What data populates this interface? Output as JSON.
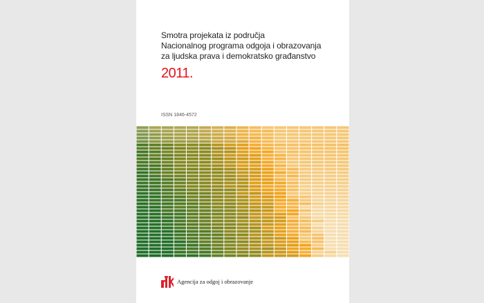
{
  "cover": {
    "title_lines": [
      "Smotra projekata iz područja",
      "Nacionalnog programa odgoja i obrazovanja",
      "za ljudska prava i demokratsko građanstvo"
    ],
    "year": "2011.",
    "issn": "ISSN 1846-4572",
    "publisher": "Agencija za odgoj i obrazovanje"
  },
  "colors": {
    "year_red": "#e3121b",
    "logo_red": "#d9232d",
    "mosaic_green": "#1f6e2a",
    "mosaic_olive": "#8a8a22",
    "mosaic_orange": "#f4a41c",
    "mosaic_pale": "#f6deb0"
  }
}
